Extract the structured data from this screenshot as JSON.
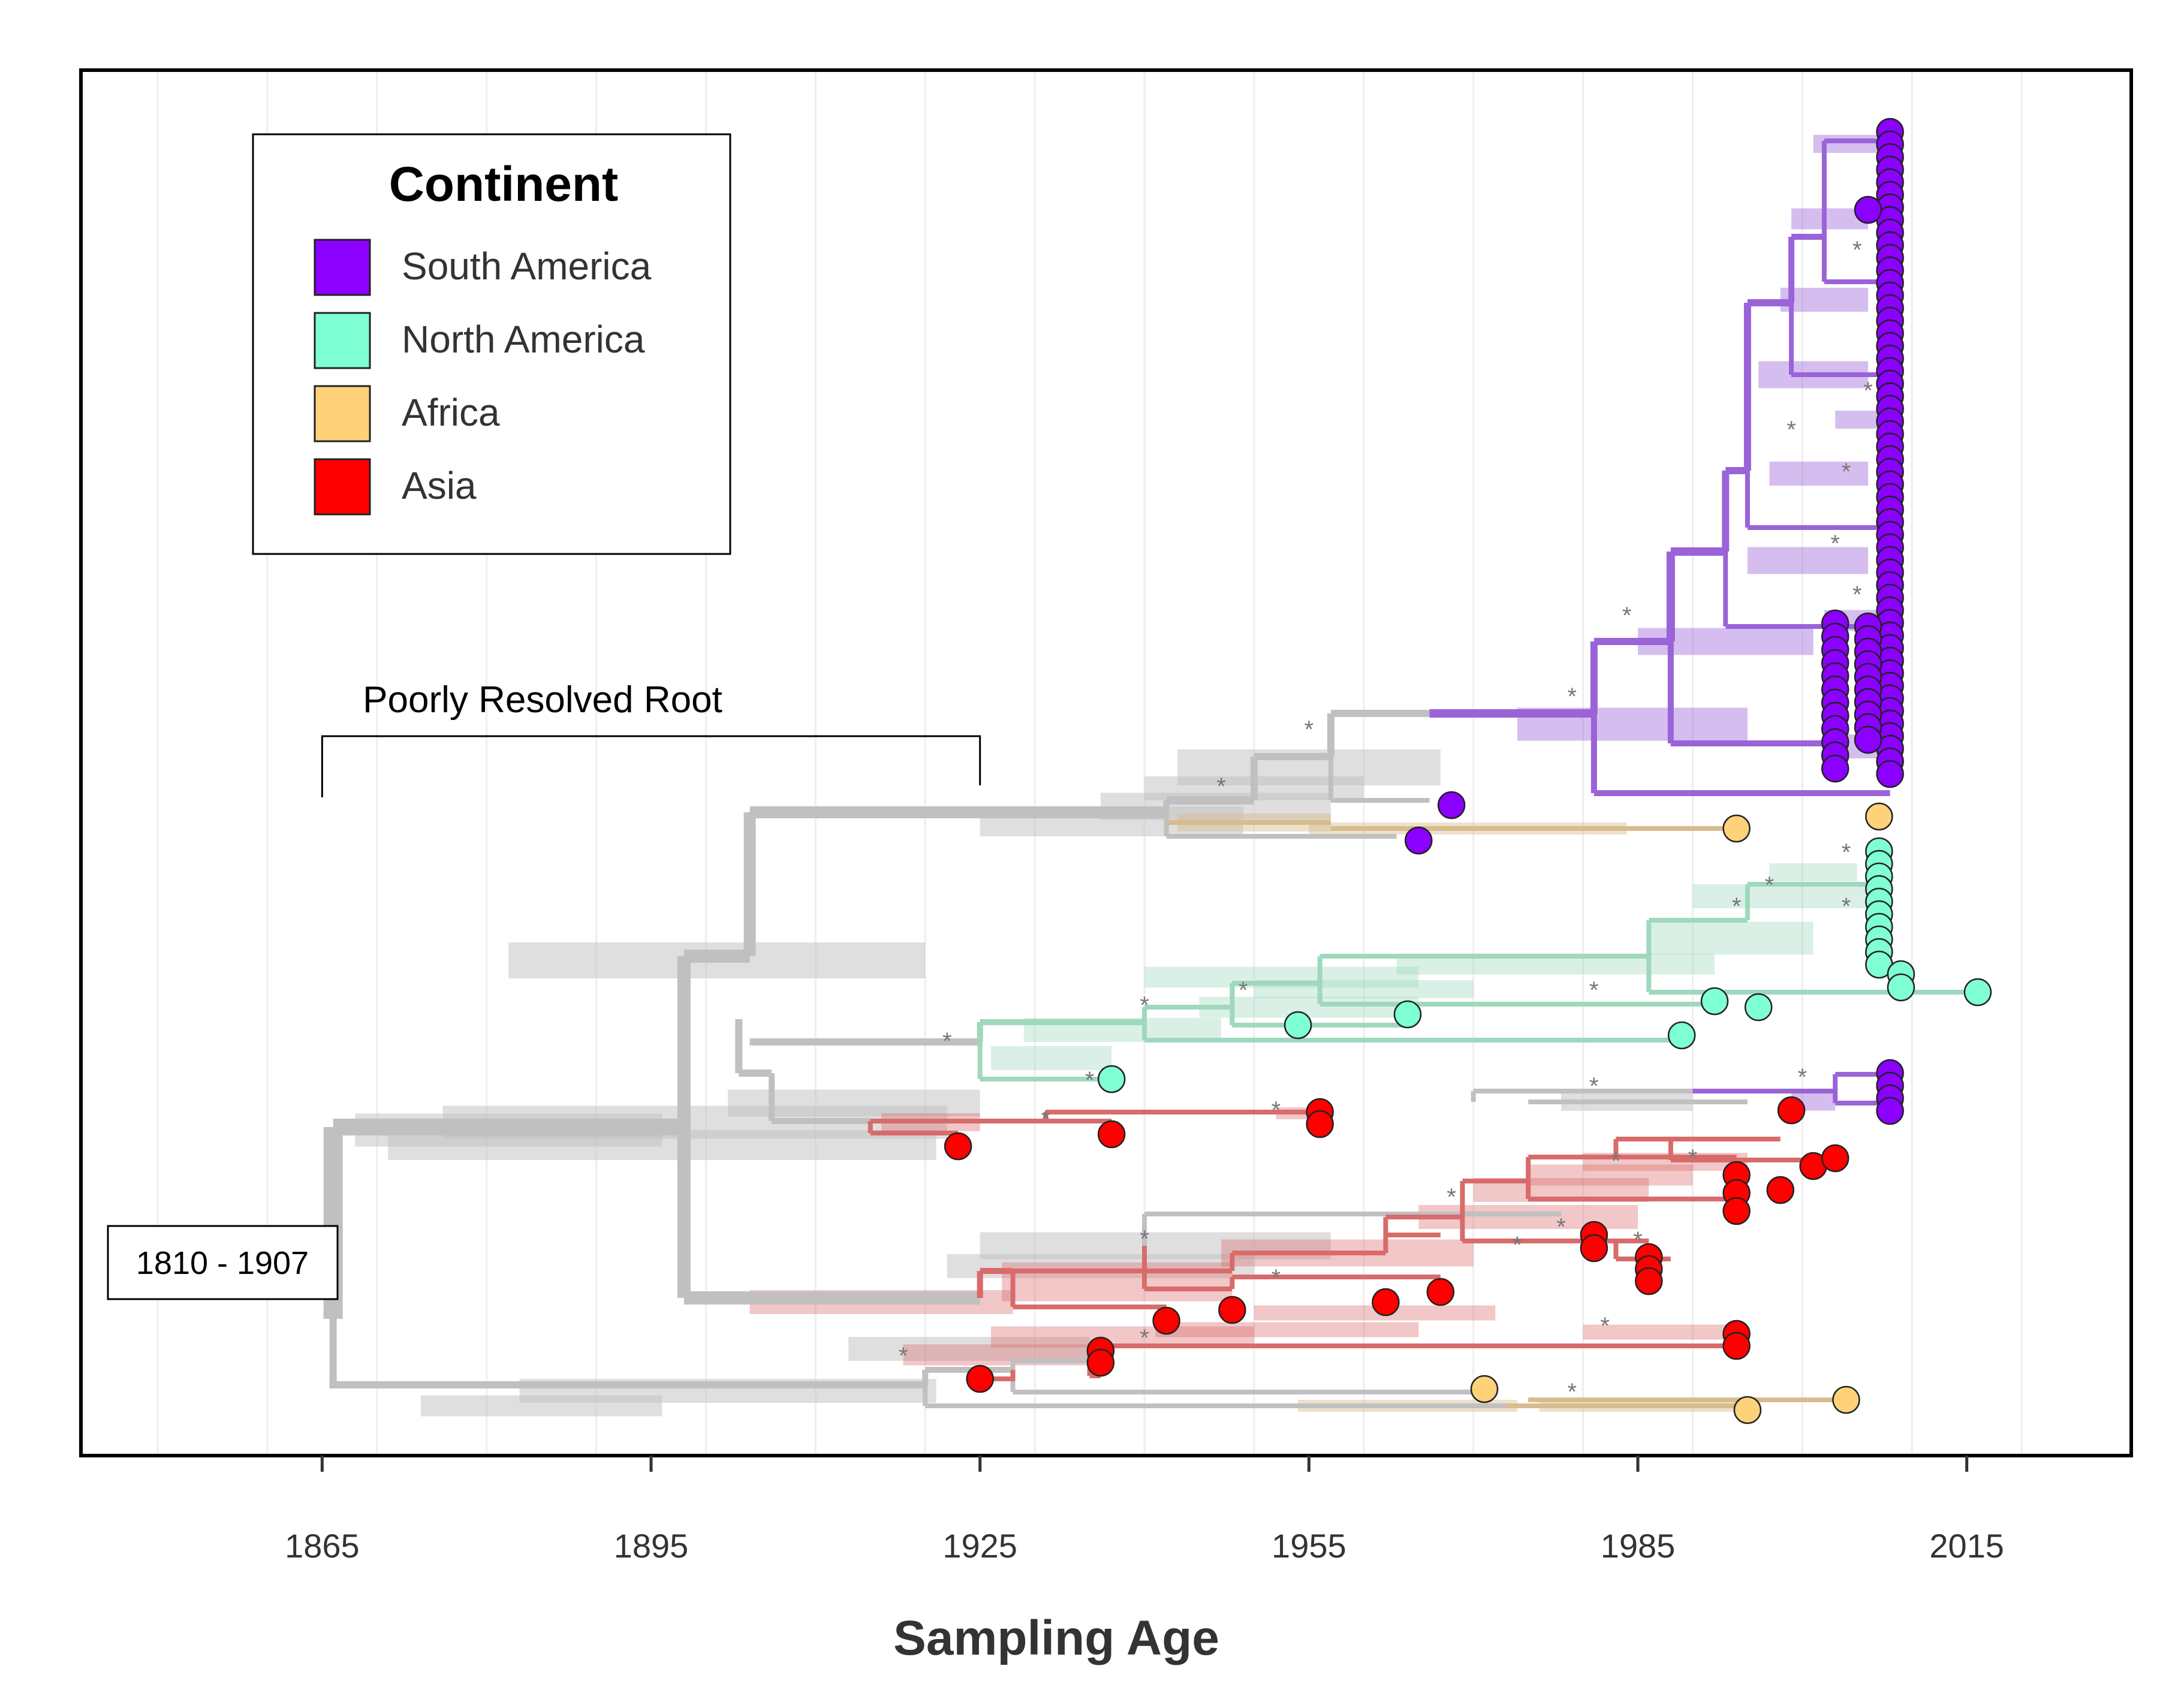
{
  "chart_data": {
    "type": "phylogenetic-tree",
    "xlabel": "Sampling Age",
    "xlim": [
      1843,
      2030
    ],
    "x_ticks": [
      1865,
      1895,
      1925,
      1955,
      1985,
      2015
    ],
    "grid": true,
    "legend": {
      "title": "Continent",
      "position": "top-left",
      "entries": [
        {
          "label": "South America",
          "color": "#8B00FF"
        },
        {
          "label": "North America",
          "color": "#7FFFD4"
        },
        {
          "label": "Africa",
          "color": "#FFD27A"
        },
        {
          "label": "Asia",
          "color": "#FF0000"
        }
      ]
    },
    "branch_colors": {
      "South America": "#9a63d8",
      "North America": "#9fd8bd",
      "Africa": "#d6bc8e",
      "Asia": "#d96b6b",
      "Unknown": "#c0c0c0"
    },
    "annotations": {
      "root_bracket_label": "Poorly Resolved Root",
      "root_bracket_range": [
        1865,
        1925
      ],
      "root_range_label": "1810 - 1907"
    },
    "significance_marker": "*",
    "tips": {
      "South America": [
        {
          "year": 2008,
          "count": 52
        },
        {
          "year": 2006,
          "count": 10
        },
        {
          "year": 2003,
          "count": 12
        },
        {
          "year": 1968,
          "count": 1
        },
        {
          "year": 1965,
          "count": 1
        }
      ],
      "North America": [
        {
          "year": 2007,
          "count": 10
        },
        {
          "year": 2016,
          "count": 1
        },
        {
          "year": 2009,
          "count": 2
        },
        {
          "year": 1996,
          "count": 1
        },
        {
          "year": 1992,
          "count": 1
        },
        {
          "year": 1989,
          "count": 1
        },
        {
          "year": 1964,
          "count": 1
        },
        {
          "year": 1954,
          "count": 1
        },
        {
          "year": 1937,
          "count": 1
        }
      ],
      "Africa": [
        {
          "year": 2007,
          "count": 1
        },
        {
          "year": 1994,
          "count": 1
        },
        {
          "year": 1995,
          "count": 1
        },
        {
          "year": 2004,
          "count": 1
        },
        {
          "year": 1971,
          "count": 1
        }
      ],
      "Asia": [
        {
          "year": 1923,
          "count": 1
        },
        {
          "year": 1937,
          "count": 1
        },
        {
          "year": 1956,
          "count": 2
        },
        {
          "year": 1999,
          "count": 1
        },
        {
          "year": 1936,
          "count": 2
        },
        {
          "year": 1925,
          "count": 1
        },
        {
          "year": 1994,
          "count": 2
        },
        {
          "year": 1994,
          "count": 3
        },
        {
          "year": 1981,
          "count": 2
        },
        {
          "year": 1986,
          "count": 3
        },
        {
          "year": 1998,
          "count": 1
        },
        {
          "year": 2001,
          "count": 1
        },
        {
          "year": 2003,
          "count": 1
        },
        {
          "year": 1942,
          "count": 1
        },
        {
          "year": 1948,
          "count": 1
        },
        {
          "year": 1962,
          "count": 1
        },
        {
          "year": 1967,
          "count": 1
        }
      ]
    }
  }
}
